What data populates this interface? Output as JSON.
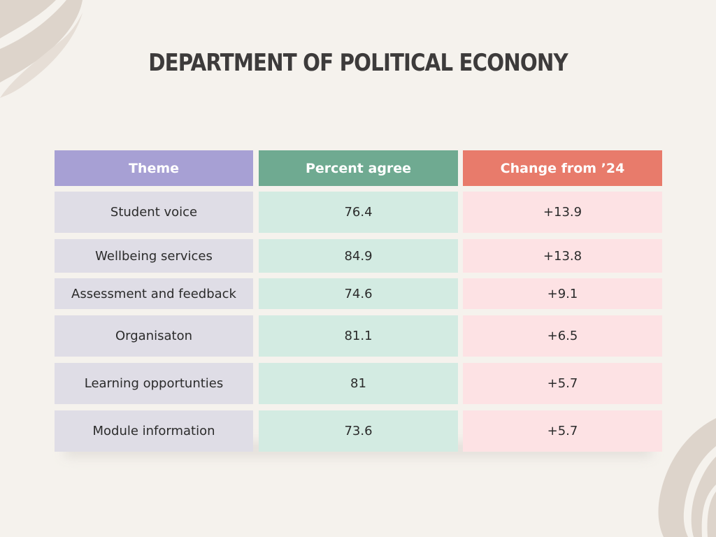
{
  "title": "DEPARTMENT OF POLITICAL ECONONY",
  "colors": {
    "background": "#f5f2ed",
    "theme_header": "#a7a0d4",
    "theme_cell": "#dfdde6",
    "percent_header": "#6faa91",
    "percent_cell": "#d3ebe2",
    "change_header": "#e87b6b",
    "change_cell": "#fde2e4",
    "title_text": "#3d3b3b",
    "decoration": "#ddd4cb"
  },
  "table": {
    "headers": [
      "Theme",
      "Percent agree",
      "Change from ’24"
    ],
    "rows": [
      [
        "Student voice",
        "76.4",
        "+13.9"
      ],
      [
        "Wellbeing services",
        "84.9",
        "+13.8"
      ],
      [
        "Assessment and feedback",
        "74.6",
        "+9.1"
      ],
      [
        "Organisaton",
        "81.1",
        "+6.5"
      ],
      [
        "Learning opportunties",
        "81",
        "+5.7"
      ],
      [
        "Module information",
        "73.6",
        "+5.7"
      ]
    ]
  }
}
